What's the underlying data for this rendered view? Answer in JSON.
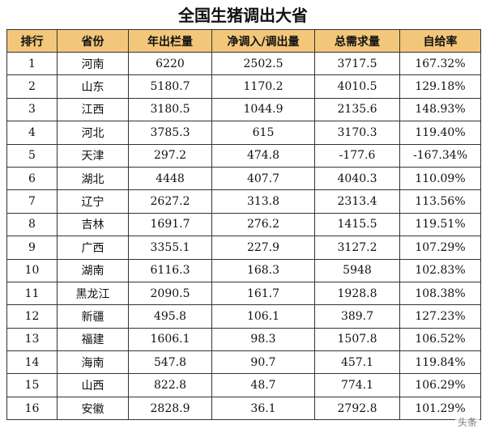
{
  "title": "全国生猪调出大省",
  "headers": [
    "排行",
    "省份",
    "年出栏量",
    "净调入/调出量",
    "总需求量",
    "自给率"
  ],
  "rows": [
    [
      "1",
      "河南",
      "6220",
      "2502.5",
      "3717.5",
      "167.32%"
    ],
    [
      "2",
      "山东",
      "5180.7",
      "1170.2",
      "4010.5",
      "129.18%"
    ],
    [
      "3",
      "江西",
      "3180.5",
      "1044.9",
      "2135.6",
      "148.93%"
    ],
    [
      "4",
      "河北",
      "3785.3",
      "615",
      "3170.3",
      "119.40%"
    ],
    [
      "5",
      "天津",
      "297.2",
      "474.8",
      "-177.6",
      "-167.34%"
    ],
    [
      "6",
      "湖北",
      "4448",
      "407.7",
      "4040.3",
      "110.09%"
    ],
    [
      "7",
      "辽宁",
      "2627.2",
      "313.8",
      "2313.4",
      "113.56%"
    ],
    [
      "8",
      "吉林",
      "1691.7",
      "276.2",
      "1415.5",
      "119.51%"
    ],
    [
      "9",
      "广西",
      "3355.1",
      "227.9",
      "3127.2",
      "107.29%"
    ],
    [
      "10",
      "湖南",
      "6116.3",
      "168.3",
      "5948",
      "102.83%"
    ],
    [
      "11",
      "黑龙江",
      "2090.5",
      "161.7",
      "1928.8",
      "108.38%"
    ],
    [
      "12",
      "新疆",
      "495.8",
      "106.1",
      "389.7",
      "127.23%"
    ],
    [
      "13",
      "福建",
      "1606.1",
      "98.3",
      "1507.8",
      "106.52%"
    ],
    [
      "14",
      "海南",
      "547.8",
      "90.7",
      "457.1",
      "119.84%"
    ],
    [
      "15",
      "山西",
      "822.8",
      "48.7",
      "774.1",
      "106.29%"
    ],
    [
      "16",
      "安徽",
      "2828.9",
      "36.1",
      "2792.8",
      "101.29%"
    ]
  ],
  "watermark": "头条"
}
